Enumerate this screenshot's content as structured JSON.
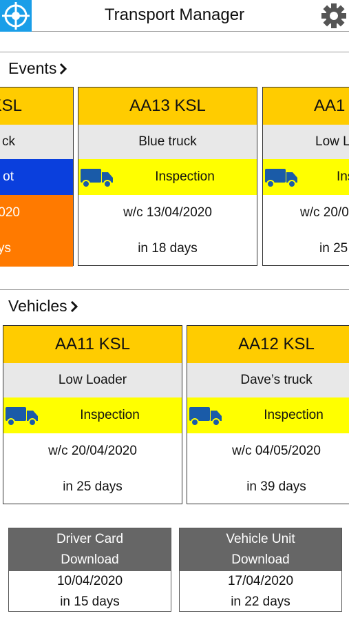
{
  "header": {
    "title": "Transport Manager"
  },
  "events": {
    "title": "Events",
    "cards": [
      {
        "plate": "KSL",
        "name": "ck",
        "event": "ot",
        "date": "020",
        "due": "ys"
      },
      {
        "plate": "AA13 KSL",
        "name": "Blue truck",
        "event": "Inspection",
        "date": "w/c 13/04/2020",
        "due": "in 18 days"
      },
      {
        "plate": "AA1",
        "name": "Low L",
        "event": "Ins",
        "date": "w/c 20/0",
        "due": "in 25"
      }
    ]
  },
  "vehicles": {
    "title": "Vehicles",
    "cards": [
      {
        "plate": "AA11 KSL",
        "name": "Low Loader",
        "event": "Inspection",
        "date": "w/c 20/04/2020",
        "due": "in 25 days"
      },
      {
        "plate": "AA12 KSL",
        "name": "Dave’s truck",
        "event": "Inspection",
        "date": "w/c 04/05/2020",
        "due": "in 39 days"
      }
    ]
  },
  "downloads": [
    {
      "title": [
        "Driver Card",
        "Download"
      ],
      "date": "10/04/2020",
      "due": "in 15 days"
    },
    {
      "title": [
        "Vehicle Unit",
        "Download"
      ],
      "date": "17/04/2020",
      "due": "in 22 days"
    }
  ]
}
